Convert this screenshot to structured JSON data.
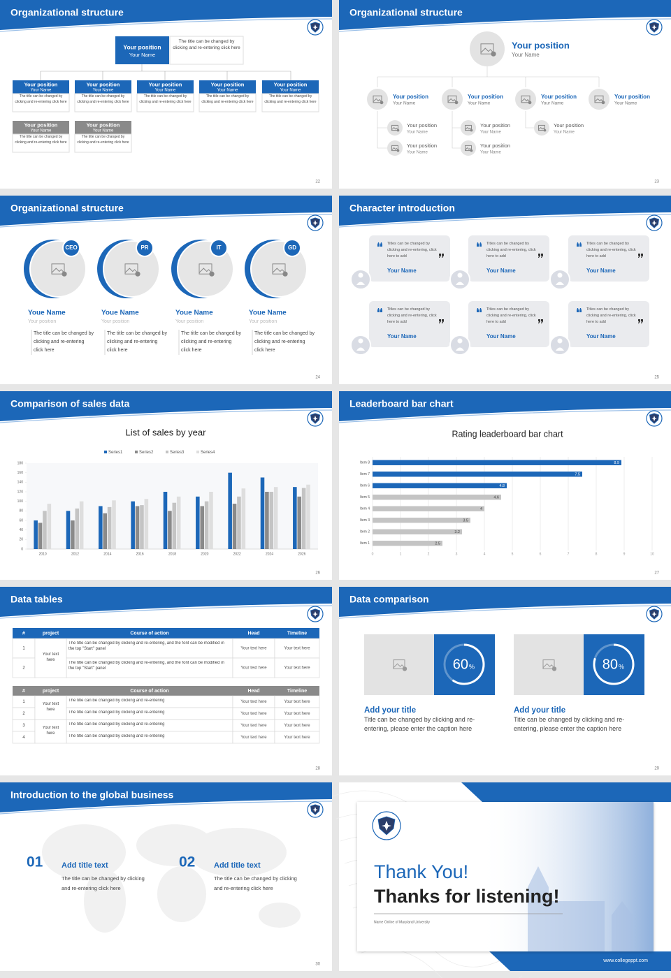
{
  "slides": [
    {
      "title": "Organizational structure",
      "page": 22,
      "top": {
        "position": "Your position",
        "name": "Your Name",
        "note": "The title can be changed by clicking and re-entering click here"
      },
      "boxes": [
        {
          "position": "Your position",
          "name": "Your Name",
          "text": "The title can be changed by clicking and re-entering click here"
        },
        {
          "position": "Your position",
          "name": "Your Name",
          "text": "The title can be changed by clicking and re-entering click here"
        },
        {
          "position": "Your position",
          "name": "Your Name",
          "text": "The title can be changed by clicking and re-entering click here"
        },
        {
          "position": "Your position",
          "name": "Your Name",
          "text": "The title can be changed by clicking and re-entering click here"
        },
        {
          "position": "Your position",
          "name": "Your Name",
          "text": "The title can be changed by clicking and re-entering click here"
        },
        {
          "position": "Your position",
          "name": "Your Name",
          "text": "The title can be changed by clicking and re-entering click here"
        },
        {
          "position": "Your position",
          "name": "Your Name",
          "text": "The title can be changed by clicking and re-entering click here"
        }
      ]
    },
    {
      "title": "Organizational structure",
      "page": 23,
      "top": {
        "position": "Your position",
        "name": "Your Name"
      },
      "level2": [
        {
          "position": "Your position",
          "name": "Your Name"
        },
        {
          "position": "Your position",
          "name": "Your Name"
        },
        {
          "position": "Your position",
          "name": "Your Name"
        },
        {
          "position": "Your position",
          "name": "Your Name"
        }
      ],
      "level3": [
        {
          "position": "Your position",
          "name": "Your Name"
        },
        {
          "position": "Your position",
          "name": "Your Name"
        },
        {
          "position": "Your position",
          "name": "Your Name"
        },
        {
          "position": "Your position",
          "name": "Your Name"
        },
        {
          "position": "Your position",
          "name": "Your Name"
        }
      ]
    },
    {
      "title": "Organizational structure",
      "page": 24,
      "members": [
        {
          "badge": "CEO",
          "name": "Youe Name",
          "position": "Your position",
          "text": "The title can be changed by clicking and re-entering click here"
        },
        {
          "badge": "PR",
          "name": "Youe Name",
          "position": "Your position",
          "text": "The title can be changed by clicking and re-entering click here"
        },
        {
          "badge": "IT",
          "name": "Youe Name",
          "position": "Your position",
          "text": "The title can be changed by clicking and re-entering click here"
        },
        {
          "badge": "GD",
          "name": "Youe Name",
          "position": "Your position",
          "text": "The title can be changed by clicking and re-entering click here"
        }
      ]
    },
    {
      "title": "Character introduction",
      "page": 25,
      "cards": [
        {
          "text": "Titles can be changed by clicking and re-entering, click here to add",
          "name": "Your Name"
        },
        {
          "text": "Titles can be changed by clicking and re-entering, click here to add",
          "name": "Your Name"
        },
        {
          "text": "Titles can be changed by clicking and re-entering, click here to add",
          "name": "Your Name"
        },
        {
          "text": "Titles can be changed by clicking and re-entering, click here to add",
          "name": "Your Name"
        },
        {
          "text": "Titles can be changed by clicking and re-entering, click here to add",
          "name": "Your Name"
        },
        {
          "text": "Titles can be changed by clicking and re-entering, click here to add",
          "name": "Your Name"
        }
      ]
    },
    {
      "title": "Comparison of sales data",
      "page": 26
    },
    {
      "title": "Leaderboard bar chart",
      "page": 27
    },
    {
      "title": "Data tables",
      "page": 28,
      "tables": [
        {
          "header": [
            "#",
            "project",
            "Course of action",
            "Head",
            "Timeline"
          ],
          "projects": [
            "Your text here"
          ],
          "rows": [
            [
              "1",
              "The title can be changed by clicking and re-entering, and the font can be modified in the top \"Start\" panel",
              "Your text here",
              "Your text here"
            ],
            [
              "2",
              "The title can be changed by clicking and re-entering, and the font can be modified in the top \"Start\" panel",
              "Your text here",
              "Your text here"
            ]
          ]
        },
        {
          "header": [
            "#",
            "project",
            "Course of action",
            "Head",
            "Timeline"
          ],
          "projects": [
            "Your text here",
            "Your text here"
          ],
          "rows": [
            [
              "1",
              "The title can be changed by clicking and re-entering",
              "Your text here",
              "Your text here"
            ],
            [
              "2",
              "The title can be changed by clicking and re-entering",
              "Your text here",
              "Your text here"
            ],
            [
              "3",
              "The title can be changed by clicking and re-entering",
              "Your text here",
              "Your text here"
            ],
            [
              "4",
              "The title can be changed by clicking and re-entering",
              "Your text here",
              "Your text here"
            ]
          ]
        }
      ]
    },
    {
      "title": "Data comparison",
      "page": 29,
      "cards": [
        {
          "percent": 60,
          "unit": "%",
          "title": "Add your title",
          "text": "Title can be changed by clicking and re-entering, please enter the caption here"
        },
        {
          "percent": 80,
          "unit": "%",
          "title": "Add your title",
          "text": "Title can be changed by clicking and re-entering, please enter the caption here"
        }
      ]
    },
    {
      "title": "Introduction to the global business",
      "page": 30,
      "items": [
        {
          "number": "01",
          "title": "Add title text",
          "text": "The title can be changed by clicking and re-entering click here"
        },
        {
          "number": "02",
          "title": "Add title text",
          "text": "The title can be changed by clicking and re-entering click here"
        }
      ]
    },
    {
      "thanks": "Thank You!",
      "subtitle": "Thanks for listening!",
      "caption": "Name Online of Maryland University",
      "website": "www.collegeppt.com"
    }
  ],
  "chart_data": [
    {
      "type": "bar",
      "title": "List of sales by year",
      "categories": [
        "2010",
        "2012",
        "2014",
        "2016",
        "2018",
        "2020",
        "2022",
        "2024",
        "2026"
      ],
      "series": [
        {
          "name": "Series1",
          "color": "#1c67b8",
          "values": [
            60,
            80,
            90,
            100,
            120,
            110,
            160,
            150,
            130
          ]
        },
        {
          "name": "Series2",
          "color": "#8a8a8a",
          "values": [
            55,
            60,
            75,
            90,
            80,
            90,
            95,
            120,
            110
          ]
        },
        {
          "name": "Series3",
          "color": "#c4c4c4",
          "values": [
            80,
            85,
            88,
            92,
            97,
            100,
            110,
            120,
            128
          ]
        },
        {
          "name": "Series4",
          "color": "#dedede",
          "values": [
            95,
            100,
            102,
            105,
            110,
            120,
            127,
            130,
            135
          ]
        }
      ],
      "ylim": [
        0,
        180
      ],
      "yticks": [
        0,
        20,
        40,
        60,
        80,
        100,
        120,
        140,
        160,
        180
      ],
      "grid": false
    },
    {
      "type": "hbar",
      "title": "Rating leaderboard bar chart",
      "categories": [
        "Item 1",
        "Item 2",
        "Item 3",
        "Item 4",
        "Item 5",
        "Item 6",
        "Item 7",
        "Item 8"
      ],
      "values": [
        2.5,
        3.2,
        3.5,
        4,
        4.6,
        4.8,
        7.5,
        8.9
      ],
      "colors": [
        "#c4c4c4",
        "#c4c4c4",
        "#c4c4c4",
        "#c4c4c4",
        "#c4c4c4",
        "#1c67b8",
        "#1c67b8",
        "#1c67b8"
      ],
      "xlim": [
        0,
        10
      ],
      "xticks": [
        0,
        1,
        2,
        3,
        4,
        5,
        6,
        7,
        8,
        9,
        10
      ],
      "grid": true
    }
  ]
}
